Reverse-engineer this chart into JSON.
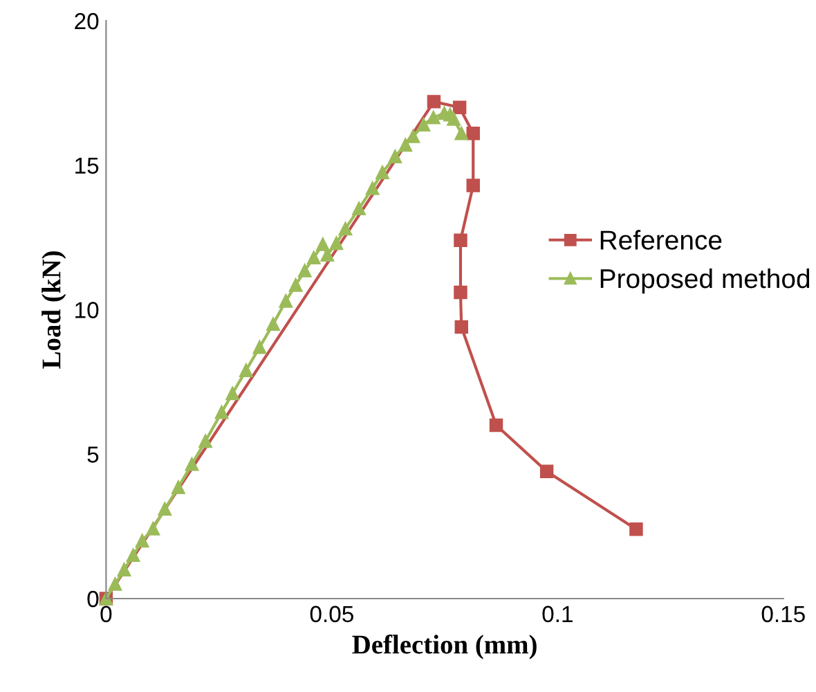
{
  "chart_data": {
    "type": "line",
    "xlabel": "Deflection (mm)",
    "ylabel": "Load (kN)",
    "xlim": [
      0,
      0.15
    ],
    "xticks": [
      0,
      0.05,
      {
        "value": 0.1,
        "label": "0.1"
      },
      0.15
    ],
    "ylim": [
      0,
      20
    ],
    "yticks": [
      0,
      5,
      10,
      15,
      20
    ],
    "grid": false,
    "legend": "right",
    "series": [
      {
        "name": "Reference",
        "color": "#c0504d",
        "marker": "square",
        "x": [
          0,
          0.0726,
          0.0783,
          0.0813,
          0.0813,
          0.0785,
          0.0785,
          0.0787,
          0.0864,
          0.0976,
          0.1174
        ],
        "values": [
          0,
          17.2,
          17.0,
          16.1,
          14.3,
          12.4,
          10.6,
          9.4,
          6.0,
          4.4,
          2.4
        ]
      },
      {
        "name": "Proposed method",
        "color": "#9bbb59",
        "marker": "triangle",
        "x": [
          0,
          0.002,
          0.004,
          0.006,
          0.008,
          0.0104,
          0.013,
          0.016,
          0.019,
          0.022,
          0.0256,
          0.028,
          0.031,
          0.034,
          0.037,
          0.0398,
          0.042,
          0.044,
          0.046,
          0.048,
          0.049,
          0.051,
          0.053,
          0.056,
          0.059,
          0.0612,
          0.064,
          0.0663,
          0.068,
          0.0703,
          0.0725,
          0.0749,
          0.0762,
          0.077,
          0.0787
        ],
        "values": [
          0,
          0.5,
          1.0,
          1.5,
          2.0,
          2.42,
          3.1,
          3.85,
          4.65,
          5.45,
          6.45,
          7.1,
          7.9,
          8.7,
          9.5,
          10.3,
          10.85,
          11.35,
          11.8,
          12.26,
          11.9,
          12.3,
          12.8,
          13.5,
          14.2,
          14.75,
          15.3,
          15.7,
          16.0,
          16.4,
          16.65,
          16.8,
          16.75,
          16.6,
          16.1
        ]
      }
    ]
  }
}
